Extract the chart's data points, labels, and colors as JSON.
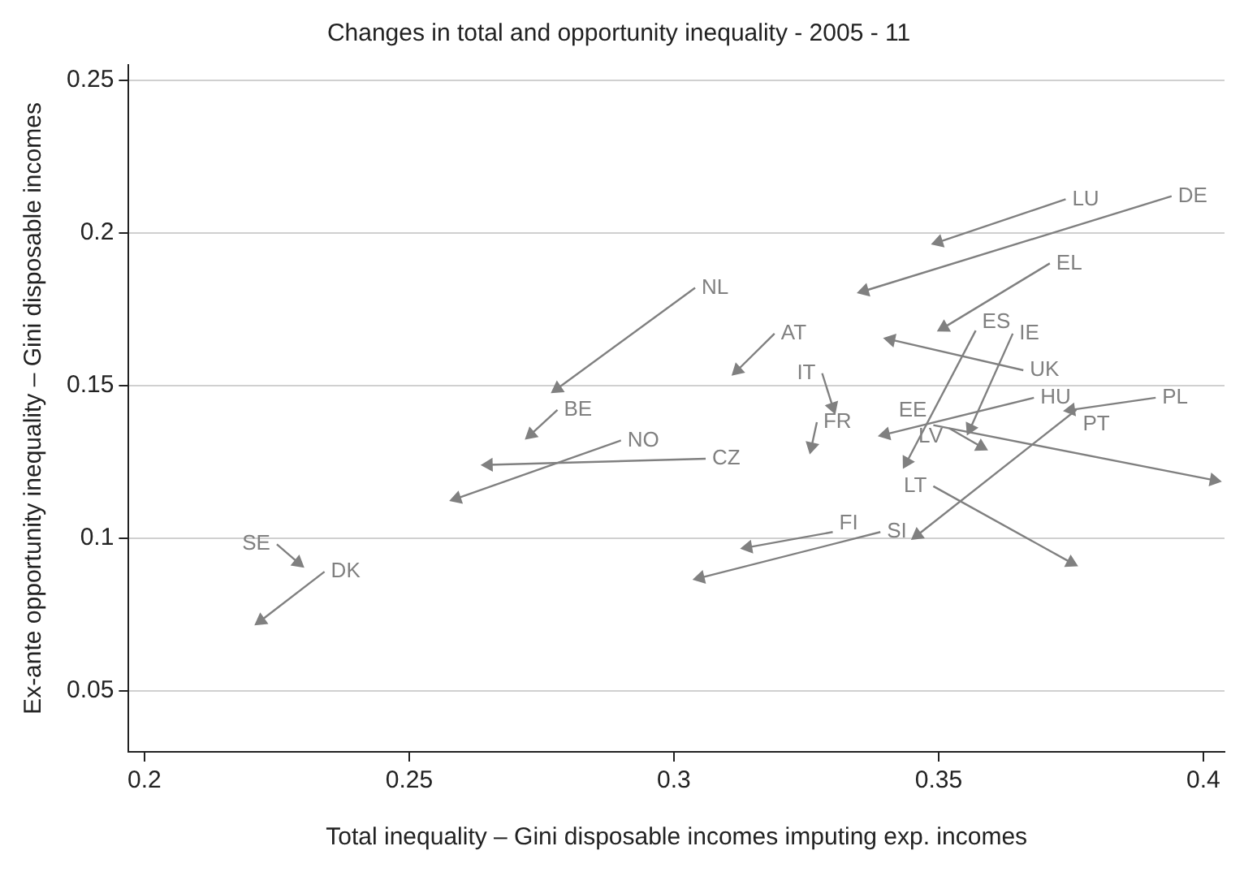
{
  "chart_data": {
    "type": "line",
    "title": "Changes in total and opportunity inequality - 2005 - 11",
    "xlabel": "Total inequality – Gini disposable incomes imputing exp. incomes",
    "ylabel": "Ex-ante opportunity inequality – Gini disposable incomes",
    "xlim": [
      0.197,
      0.404
    ],
    "xticks": [
      0.2,
      0.25,
      0.3,
      0.35,
      0.4
    ],
    "ylim": [
      0.03,
      0.255
    ],
    "yticks": [
      0.05,
      0.1,
      0.15,
      0.2,
      0.25
    ],
    "grid": "y",
    "legend": false,
    "marker": "triangle",
    "line_style": "solid",
    "series": [
      {
        "name": "LU",
        "color": "#808080",
        "x": [
          0.374,
          0.35
        ],
        "values": [
          0.211,
          0.197
        ]
      },
      {
        "name": "DE",
        "color": "#808080",
        "x": [
          0.394,
          0.336
        ],
        "values": [
          0.212,
          0.181
        ]
      },
      {
        "name": "EL",
        "color": "#808080",
        "x": [
          0.371,
          0.351
        ],
        "values": [
          0.19,
          0.169
        ]
      },
      {
        "name": "ES",
        "color": "#808080",
        "x": [
          0.357,
          0.344
        ],
        "values": [
          0.168,
          0.125
        ]
      },
      {
        "name": "IE",
        "color": "#808080",
        "x": [
          0.364,
          0.356
        ],
        "values": [
          0.167,
          0.136
        ]
      },
      {
        "name": "UK",
        "color": "#808080",
        "x": [
          0.366,
          0.341
        ],
        "values": [
          0.155,
          0.165
        ]
      },
      {
        "name": "HU",
        "color": "#808080",
        "x": [
          0.368,
          0.34
        ],
        "values": [
          0.146,
          0.134
        ]
      },
      {
        "name": "PL",
        "color": "#808080",
        "x": [
          0.391,
          0.375
        ],
        "values": [
          0.146,
          0.142
        ]
      },
      {
        "name": "PT",
        "color": "#808080",
        "x": [
          0.376,
          0.346
        ],
        "values": [
          0.142,
          0.101
        ]
      },
      {
        "name": "FI",
        "color": "#808080",
        "x": [
          0.33,
          0.314
        ],
        "values": [
          0.102,
          0.097
        ]
      },
      {
        "name": "SI",
        "color": "#808080",
        "x": [
          0.339,
          0.305
        ],
        "values": [
          0.102,
          0.087
        ]
      },
      {
        "name": "EE",
        "color": "#808080",
        "x": [
          0.349,
          0.402
        ],
        "values": [
          0.137,
          0.119
        ]
      },
      {
        "name": "LV",
        "color": "#808080",
        "x": [
          0.352,
          0.358
        ],
        "values": [
          0.136,
          0.13
        ]
      },
      {
        "name": "LT",
        "color": "#808080",
        "x": [
          0.349,
          0.375
        ],
        "values": [
          0.117,
          0.092
        ]
      },
      {
        "name": "FR",
        "color": "#808080",
        "x": [
          0.327,
          0.326
        ],
        "values": [
          0.138,
          0.13
        ]
      },
      {
        "name": "IT",
        "color": "#808080",
        "x": [
          0.328,
          0.33
        ],
        "values": [
          0.154,
          0.143
        ]
      },
      {
        "name": "AT",
        "color": "#808080",
        "x": [
          0.319,
          0.312
        ],
        "values": [
          0.167,
          0.155
        ]
      },
      {
        "name": "CZ",
        "color": "#808080",
        "x": [
          0.306,
          0.265
        ],
        "values": [
          0.126,
          0.124
        ]
      },
      {
        "name": "NO",
        "color": "#808080",
        "x": [
          0.29,
          0.259
        ],
        "values": [
          0.132,
          0.113
        ]
      },
      {
        "name": "NL",
        "color": "#808080",
        "x": [
          0.304,
          0.278
        ],
        "values": [
          0.182,
          0.149
        ]
      },
      {
        "name": "BE",
        "color": "#808080",
        "x": [
          0.278,
          0.273
        ],
        "values": [
          0.142,
          0.134
        ]
      },
      {
        "name": "SE",
        "color": "#808080",
        "x": [
          0.225,
          0.229
        ],
        "values": [
          0.098,
          0.092
        ]
      },
      {
        "name": "DK",
        "color": "#808080",
        "x": [
          0.234,
          0.222
        ],
        "values": [
          0.089,
          0.073
        ]
      }
    ]
  }
}
